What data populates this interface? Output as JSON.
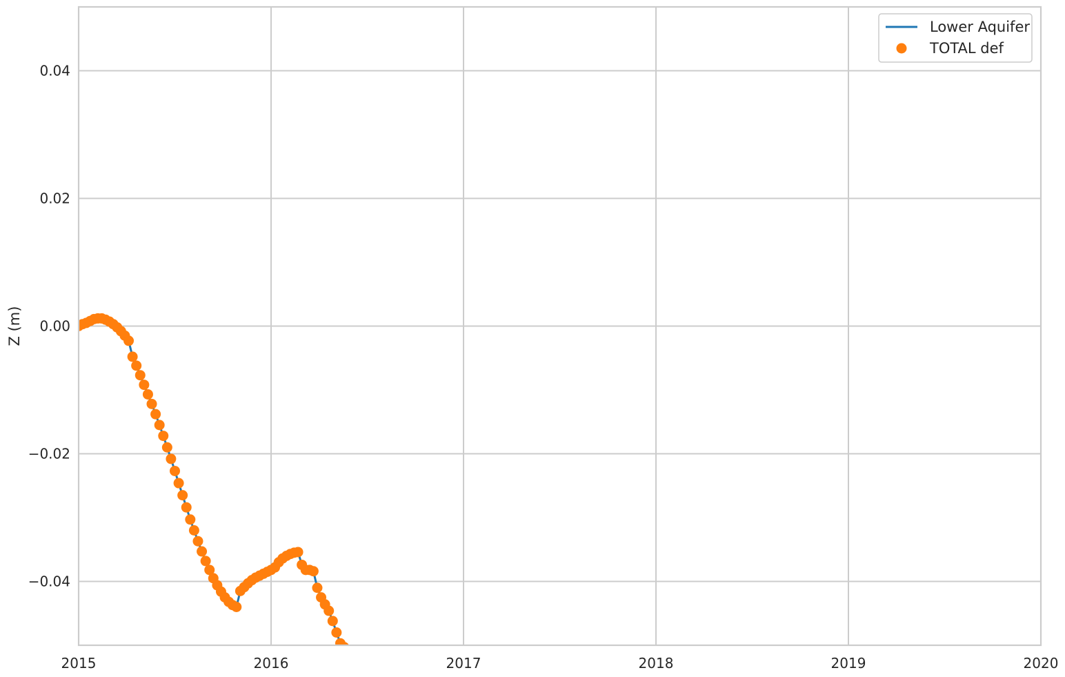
{
  "chart_data": {
    "type": "line",
    "title": "",
    "xlabel": "",
    "ylabel": "Z (m)",
    "xlim": [
      2015,
      2020
    ],
    "ylim": [
      -0.05,
      0.05
    ],
    "x_ticks": [
      2015,
      2016,
      2017,
      2018,
      2019,
      2020
    ],
    "x_tick_labels": [
      "2015",
      "2016",
      "2017",
      "2018",
      "2019",
      "2020"
    ],
    "y_ticks": [
      -0.04,
      -0.02,
      0.0,
      0.02,
      0.04
    ],
    "y_tick_labels": [
      "−0.04",
      "−0.02",
      "0.00",
      "0.02",
      "0.04"
    ],
    "grid": true,
    "legend_position": "top-right",
    "series": [
      {
        "name": "Lower Aquifer",
        "style": "line",
        "color": "#1f77b4",
        "points": [
          [
            2015.0,
            0.0
          ],
          [
            2015.02,
            0.0003
          ],
          [
            2015.04,
            0.0005
          ],
          [
            2015.06,
            0.0008
          ],
          [
            2015.08,
            0.0011
          ],
          [
            2015.1,
            0.0012
          ],
          [
            2015.12,
            0.0012
          ],
          [
            2015.14,
            0.001
          ],
          [
            2015.16,
            0.0007
          ],
          [
            2015.18,
            0.0003
          ],
          [
            2015.2,
            -0.0002
          ],
          [
            2015.22,
            -0.0008
          ],
          [
            2015.24,
            -0.0015
          ],
          [
            2015.26,
            -0.0023
          ],
          [
            2015.28,
            -0.0048
          ],
          [
            2015.3,
            -0.0062
          ],
          [
            2015.32,
            -0.0077
          ],
          [
            2015.34,
            -0.0092
          ],
          [
            2015.36,
            -0.0107
          ],
          [
            2015.38,
            -0.0122
          ],
          [
            2015.4,
            -0.0138
          ],
          [
            2015.42,
            -0.0155
          ],
          [
            2015.44,
            -0.0172
          ],
          [
            2015.46,
            -0.019
          ],
          [
            2015.48,
            -0.0208
          ],
          [
            2015.5,
            -0.0227
          ],
          [
            2015.52,
            -0.0246
          ],
          [
            2015.54,
            -0.0265
          ],
          [
            2015.56,
            -0.0284
          ],
          [
            2015.58,
            -0.0303
          ],
          [
            2015.6,
            -0.032
          ],
          [
            2015.62,
            -0.0337
          ],
          [
            2015.64,
            -0.0353
          ],
          [
            2015.66,
            -0.0368
          ],
          [
            2015.68,
            -0.0382
          ],
          [
            2015.7,
            -0.0395
          ],
          [
            2015.72,
            -0.0406
          ],
          [
            2015.74,
            -0.0416
          ],
          [
            2015.76,
            -0.0425
          ],
          [
            2015.78,
            -0.0432
          ],
          [
            2015.8,
            -0.0437
          ],
          [
            2015.82,
            -0.044
          ],
          [
            2015.84,
            -0.0415
          ],
          [
            2015.86,
            -0.0409
          ],
          [
            2015.88,
            -0.0403
          ],
          [
            2015.9,
            -0.0398
          ],
          [
            2015.92,
            -0.0394
          ],
          [
            2015.94,
            -0.0391
          ],
          [
            2015.96,
            -0.0388
          ],
          [
            2015.98,
            -0.0385
          ],
          [
            2016.0,
            -0.0382
          ],
          [
            2016.02,
            -0.0378
          ],
          [
            2016.04,
            -0.037
          ],
          [
            2016.06,
            -0.0364
          ],
          [
            2016.08,
            -0.036
          ],
          [
            2016.1,
            -0.0357
          ],
          [
            2016.12,
            -0.0355
          ],
          [
            2016.14,
            -0.0354
          ],
          [
            2016.16,
            -0.0374
          ],
          [
            2016.18,
            -0.0382
          ],
          [
            2016.2,
            -0.0382
          ],
          [
            2016.22,
            -0.0384
          ],
          [
            2016.24,
            -0.041
          ],
          [
            2016.26,
            -0.0425
          ],
          [
            2016.28,
            -0.0436
          ],
          [
            2016.3,
            -0.0446
          ],
          [
            2016.32,
            -0.0462
          ],
          [
            2016.34,
            -0.048
          ],
          [
            2016.36,
            -0.0497
          ],
          [
            2016.38,
            -0.0503
          ]
        ]
      },
      {
        "name": "TOTAL def",
        "style": "markers",
        "color": "#ff7f0e",
        "points": [
          [
            2015.0,
            0.0
          ],
          [
            2015.02,
            0.0003
          ],
          [
            2015.04,
            0.0005
          ],
          [
            2015.06,
            0.0008
          ],
          [
            2015.08,
            0.0011
          ],
          [
            2015.1,
            0.0012
          ],
          [
            2015.12,
            0.0012
          ],
          [
            2015.14,
            0.001
          ],
          [
            2015.16,
            0.0007
          ],
          [
            2015.18,
            0.0003
          ],
          [
            2015.2,
            -0.0002
          ],
          [
            2015.22,
            -0.0008
          ],
          [
            2015.24,
            -0.0015
          ],
          [
            2015.26,
            -0.0023
          ],
          [
            2015.28,
            -0.0048
          ],
          [
            2015.3,
            -0.0062
          ],
          [
            2015.32,
            -0.0077
          ],
          [
            2015.34,
            -0.0092
          ],
          [
            2015.36,
            -0.0107
          ],
          [
            2015.38,
            -0.0122
          ],
          [
            2015.4,
            -0.0138
          ],
          [
            2015.42,
            -0.0155
          ],
          [
            2015.44,
            -0.0172
          ],
          [
            2015.46,
            -0.019
          ],
          [
            2015.48,
            -0.0208
          ],
          [
            2015.5,
            -0.0227
          ],
          [
            2015.52,
            -0.0246
          ],
          [
            2015.54,
            -0.0265
          ],
          [
            2015.56,
            -0.0284
          ],
          [
            2015.58,
            -0.0303
          ],
          [
            2015.6,
            -0.032
          ],
          [
            2015.62,
            -0.0337
          ],
          [
            2015.64,
            -0.0353
          ],
          [
            2015.66,
            -0.0368
          ],
          [
            2015.68,
            -0.0382
          ],
          [
            2015.7,
            -0.0395
          ],
          [
            2015.72,
            -0.0406
          ],
          [
            2015.74,
            -0.0416
          ],
          [
            2015.76,
            -0.0425
          ],
          [
            2015.78,
            -0.0432
          ],
          [
            2015.8,
            -0.0437
          ],
          [
            2015.82,
            -0.044
          ],
          [
            2015.84,
            -0.0415
          ],
          [
            2015.86,
            -0.0409
          ],
          [
            2015.88,
            -0.0403
          ],
          [
            2015.9,
            -0.0398
          ],
          [
            2015.92,
            -0.0394
          ],
          [
            2015.94,
            -0.0391
          ],
          [
            2015.96,
            -0.0388
          ],
          [
            2015.98,
            -0.0385
          ],
          [
            2016.0,
            -0.0382
          ],
          [
            2016.02,
            -0.0378
          ],
          [
            2016.04,
            -0.037
          ],
          [
            2016.06,
            -0.0364
          ],
          [
            2016.08,
            -0.036
          ],
          [
            2016.1,
            -0.0357
          ],
          [
            2016.12,
            -0.0355
          ],
          [
            2016.14,
            -0.0354
          ],
          [
            2016.16,
            -0.0374
          ],
          [
            2016.18,
            -0.0382
          ],
          [
            2016.2,
            -0.0382
          ],
          [
            2016.22,
            -0.0384
          ],
          [
            2016.24,
            -0.041
          ],
          [
            2016.26,
            -0.0425
          ],
          [
            2016.28,
            -0.0436
          ],
          [
            2016.3,
            -0.0446
          ],
          [
            2016.32,
            -0.0462
          ],
          [
            2016.34,
            -0.048
          ],
          [
            2016.36,
            -0.0497
          ],
          [
            2016.38,
            -0.0503
          ]
        ]
      }
    ]
  }
}
